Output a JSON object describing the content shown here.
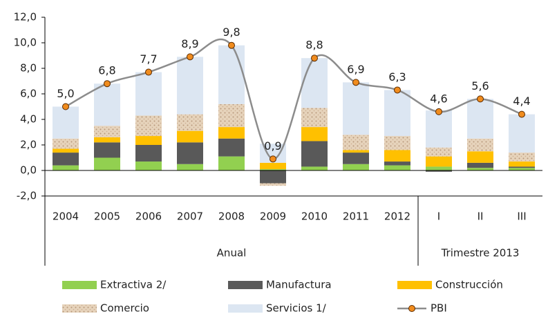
{
  "chart_data": {
    "type": "stacked_bar_line",
    "categories": [
      "2004",
      "2005",
      "2006",
      "2007",
      "2008",
      "2009",
      "2010",
      "2011",
      "2012",
      "I",
      "II",
      "III"
    ],
    "x_groups": [
      "Anual",
      "Trimestre 2013"
    ],
    "ylim": [
      -2,
      12
    ],
    "yticks": [
      {
        "value": -2,
        "label": "-2,0"
      },
      {
        "value": 0,
        "label": "0,0"
      },
      {
        "value": 2,
        "label": "2,0"
      },
      {
        "value": 4,
        "label": "4,0"
      },
      {
        "value": 6,
        "label": "6,0"
      },
      {
        "value": 8,
        "label": "8,0"
      },
      {
        "value": 10,
        "label": "10,0"
      },
      {
        "value": 12,
        "label": "12,0"
      }
    ],
    "series": [
      {
        "name": "Extractiva 2/",
        "color": "#92d050",
        "type": "bar",
        "values": [
          0.4,
          1.0,
          0.7,
          0.5,
          1.1,
          0.1,
          0.3,
          0.5,
          0.4,
          0.3,
          0.2,
          0.2
        ]
      },
      {
        "name": "Manufactura",
        "color": "#595959",
        "type": "bar",
        "values": [
          1.0,
          1.2,
          1.3,
          1.7,
          1.4,
          -1.0,
          2.0,
          0.9,
          0.3,
          -0.1,
          0.4,
          0.1
        ]
      },
      {
        "name": "Construcción",
        "color": "#ffc000",
        "type": "bar",
        "values": [
          0.3,
          0.4,
          0.7,
          0.9,
          0.9,
          0.5,
          1.1,
          0.2,
          0.9,
          0.8,
          0.9,
          0.4
        ]
      },
      {
        "name": "Comercio",
        "color": "#e6d3bb",
        "type": "bar",
        "values": [
          0.8,
          0.9,
          1.6,
          1.3,
          1.8,
          -0.2,
          1.5,
          1.2,
          1.1,
          0.7,
          1.0,
          0.7
        ]
      },
      {
        "name": "Servicios 1/",
        "color": "#dce6f2",
        "type": "bar",
        "values": [
          2.5,
          3.3,
          3.4,
          4.5,
          4.6,
          1.5,
          3.9,
          4.1,
          3.6,
          2.9,
          3.1,
          3.0
        ]
      },
      {
        "name": "PBI",
        "color": "#8c8c8c",
        "marker_color": "#f08c1e",
        "type": "line",
        "values": [
          5.0,
          6.8,
          7.7,
          8.9,
          9.8,
          0.9,
          8.8,
          6.9,
          6.3,
          4.6,
          5.6,
          4.4
        ],
        "value_labels": [
          "5,0",
          "6,8",
          "7,7",
          "8,9",
          "9,8",
          "0,9",
          "8,8",
          "6,9",
          "6,3",
          "4,6",
          "5,6",
          "4,4"
        ]
      }
    ]
  }
}
